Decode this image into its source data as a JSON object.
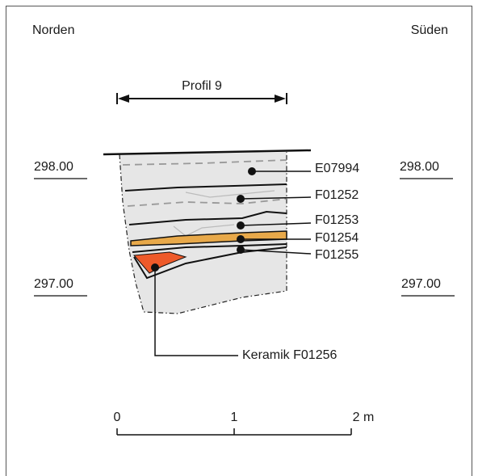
{
  "orientation": {
    "left": "Norden",
    "right": "Süden"
  },
  "profile": "Profil 9",
  "elevations": {
    "left": [
      "298.00",
      "297.00"
    ],
    "right": [
      "298.00",
      "297.00"
    ]
  },
  "layers": [
    {
      "label": "E07994"
    },
    {
      "label": "F01252"
    },
    {
      "label": "F01253"
    },
    {
      "label": "F01254"
    },
    {
      "label": "F01255"
    }
  ],
  "find": "Keramik F01256",
  "scale": {
    "ticks": [
      "0",
      "1",
      "2 m"
    ]
  }
}
